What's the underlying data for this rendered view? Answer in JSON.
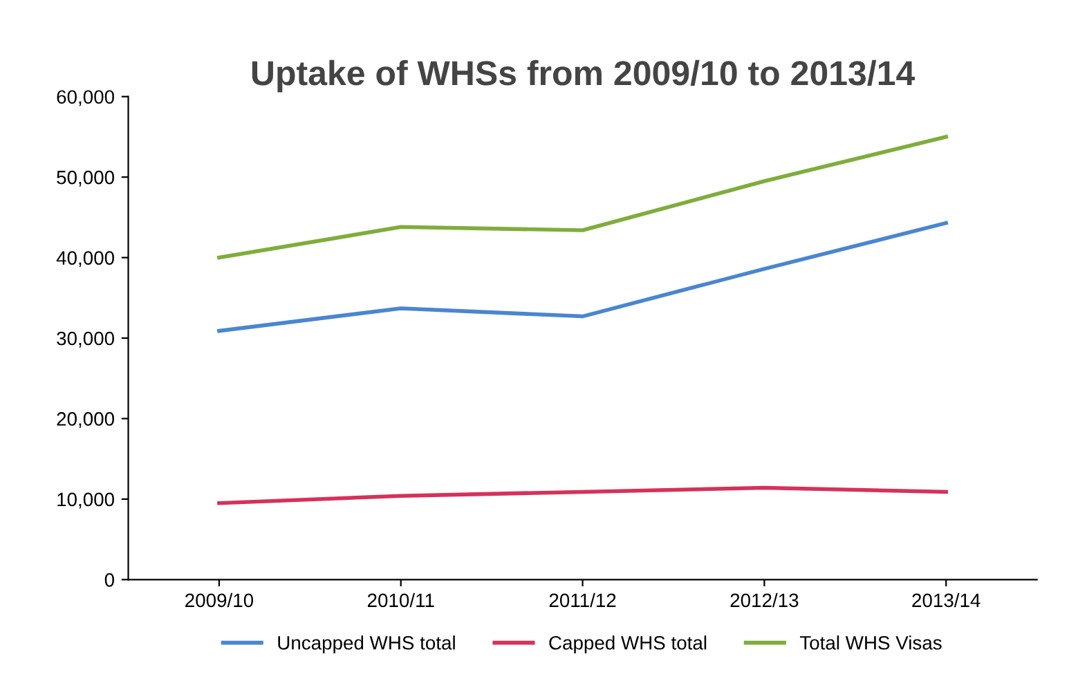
{
  "chart_data": {
    "type": "line",
    "title": "Uptake of WHSs from 2009/10 to 2013/14",
    "categories": [
      "2009/10",
      "2010/11",
      "2011/12",
      "2012/13",
      "2013/14"
    ],
    "series": [
      {
        "name": "Uncapped WHS total",
        "color": "#4a86d0",
        "values": [
          30900,
          33700,
          32700,
          38600,
          44300
        ]
      },
      {
        "name": "Capped WHS total",
        "color": "#d6315a",
        "values": [
          9500,
          10400,
          10900,
          11400,
          10900
        ]
      },
      {
        "name": "Total WHS Visas",
        "color": "#7fad3c",
        "values": [
          40000,
          43800,
          43400,
          49500,
          55000
        ]
      }
    ],
    "ylim": [
      0,
      60000
    ],
    "yticks": [
      {
        "value": 0,
        "label": "0"
      },
      {
        "value": 10000,
        "label": "10,000"
      },
      {
        "value": 20000,
        "label": "20,000"
      },
      {
        "value": 30000,
        "label": "30,000"
      },
      {
        "value": 40000,
        "label": "40,000"
      },
      {
        "value": 50000,
        "label": "50,000"
      },
      {
        "value": 60000,
        "label": "60,000"
      }
    ],
    "grid": false,
    "legend": "bottom",
    "marker": "none",
    "line_style": "solid"
  }
}
